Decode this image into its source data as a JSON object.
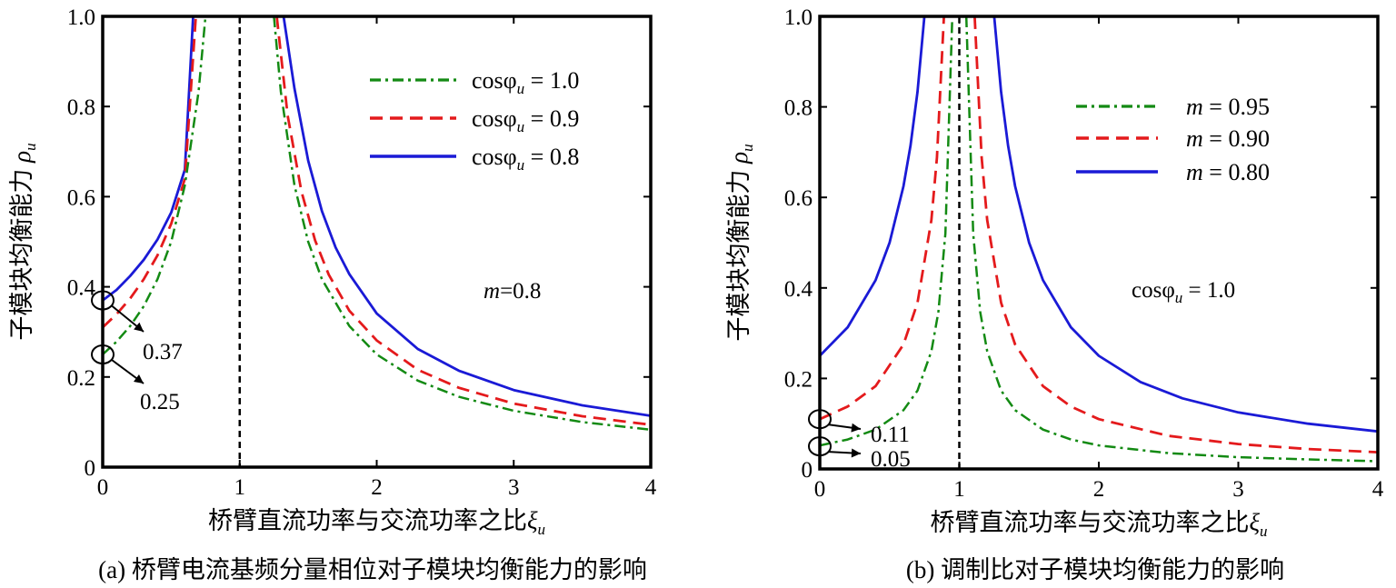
{
  "chart_data": [
    {
      "type": "line",
      "caption": "(a) 桥臂电流基频分量相位对子模块均衡能力的影响",
      "xlabel": "桥臂直流功率与交流功率之比",
      "xlabel_symbol": "ξ",
      "xlabel_sub": "u",
      "ylabel": "子模块均衡能力",
      "ylabel_symbol": "ρ",
      "ylabel_sub": "u",
      "xlim": [
        0,
        4
      ],
      "ylim": [
        0,
        1
      ],
      "x_ticks": [
        "0",
        "1",
        "2",
        "3",
        "4"
      ],
      "y_ticks": [
        "0",
        "0.2",
        "0.4",
        "0.6",
        "0.8",
        "1.0"
      ],
      "vline_x": 1,
      "legend_position": "top-right",
      "note": {
        "prefix": "m",
        "text": "=0.8"
      },
      "callouts": [
        {
          "x": 0,
          "y": 0.37,
          "label": "0.37"
        },
        {
          "x": 0,
          "y": 0.25,
          "label": "0.25"
        }
      ],
      "series": [
        {
          "name": "cos φu = 1.0",
          "legend_lhs": "cosφ",
          "legend_sub": "u",
          "legend_rhs": " = 1.0",
          "param": 1.0,
          "color": "#138a13",
          "dash": "dashdot",
          "width": 2.5,
          "x": [
            0,
            0.1,
            0.2,
            0.3,
            0.4,
            0.5,
            0.6,
            0.7,
            0.75,
            1.25,
            1.3,
            1.4,
            1.5,
            1.6,
            1.8,
            2.0,
            2.3,
            2.6,
            3.0,
            3.5,
            4.0
          ],
          "y": [
            0.25,
            0.278,
            0.313,
            0.357,
            0.417,
            0.5,
            0.625,
            0.833,
            1.0,
            1.0,
            0.833,
            0.625,
            0.5,
            0.417,
            0.313,
            0.25,
            0.192,
            0.156,
            0.125,
            0.1,
            0.083
          ]
        },
        {
          "name": "cos φu = 0.9",
          "legend_lhs": "cosφ",
          "legend_sub": "u",
          "legend_rhs": " = 0.9",
          "param": 0.9,
          "color": "#e41a1c",
          "dash": "dashed",
          "width": 2.8,
          "x": [
            0,
            0.1,
            0.2,
            0.3,
            0.4,
            0.5,
            0.6,
            0.68,
            1.27,
            1.35,
            1.45,
            1.55,
            1.65,
            1.8,
            2.0,
            2.3,
            2.6,
            3.0,
            3.5,
            4.0
          ],
          "y": [
            0.31,
            0.339,
            0.374,
            0.417,
            0.47,
            0.54,
            0.64,
            1.0,
            1.0,
            0.78,
            0.612,
            0.503,
            0.427,
            0.347,
            0.281,
            0.216,
            0.176,
            0.141,
            0.113,
            0.094
          ]
        },
        {
          "name": "cos φu = 0.8",
          "legend_lhs": "cosφ",
          "legend_sub": "u",
          "legend_rhs": " = 0.8",
          "param": 0.8,
          "color": "#1a1ad6",
          "dash": "solid",
          "width": 2.8,
          "x": [
            0,
            0.1,
            0.2,
            0.3,
            0.4,
            0.5,
            0.6,
            0.66,
            1.32,
            1.4,
            1.5,
            1.6,
            1.7,
            1.8,
            2.0,
            2.3,
            2.6,
            3.0,
            3.5,
            4.0
          ],
          "y": [
            0.37,
            0.393,
            0.424,
            0.46,
            0.505,
            0.565,
            0.66,
            1.0,
            1.0,
            0.84,
            0.68,
            0.568,
            0.487,
            0.428,
            0.341,
            0.262,
            0.214,
            0.171,
            0.137,
            0.114
          ]
        }
      ]
    },
    {
      "type": "line",
      "caption": "(b) 调制比对子模块均衡能力的影响",
      "xlabel": "桥臂直流功率与交流功率之比",
      "xlabel_symbol": "ξ",
      "xlabel_sub": "u",
      "ylabel": "子模块均衡能力",
      "ylabel_symbol": "ρ",
      "ylabel_sub": "u",
      "xlim": [
        0,
        4
      ],
      "ylim": [
        0,
        1
      ],
      "x_ticks": [
        "0",
        "1",
        "2",
        "3",
        "4"
      ],
      "y_ticks": [
        "0",
        "0.2",
        "0.4",
        "0.6",
        "0.8",
        "1.0"
      ],
      "vline_x": 1,
      "legend_position": "top-right",
      "note": {
        "prefix": "cosφ",
        "sub": "u",
        "text": " = 1.0"
      },
      "callouts": [
        {
          "x": 0,
          "y": 0.11,
          "label": "0.11"
        },
        {
          "x": 0,
          "y": 0.05,
          "label": "0.05"
        }
      ],
      "series": [
        {
          "name": "m = 0.95",
          "legend_lhs": "m",
          "legend_rhs": " = 0.95",
          "param": 0.95,
          "color": "#138a13",
          "dash": "dashdot",
          "width": 2.5,
          "x": [
            0,
            0.2,
            0.4,
            0.6,
            0.7,
            0.8,
            0.85,
            0.9,
            0.95,
            1.05,
            1.1,
            1.15,
            1.2,
            1.3,
            1.4,
            1.6,
            1.8,
            2.0,
            2.5,
            3.0,
            3.5,
            4.0
          ],
          "y": [
            0.052,
            0.065,
            0.087,
            0.13,
            0.173,
            0.26,
            0.347,
            0.52,
            1.0,
            1.0,
            0.52,
            0.347,
            0.26,
            0.173,
            0.13,
            0.087,
            0.065,
            0.052,
            0.035,
            0.026,
            0.021,
            0.017
          ]
        },
        {
          "name": "m = 0.90",
          "legend_lhs": "m",
          "legend_rhs": " = 0.90",
          "param": 0.9,
          "color": "#e41a1c",
          "dash": "dashed",
          "width": 2.8,
          "x": [
            0,
            0.2,
            0.4,
            0.6,
            0.7,
            0.8,
            0.84,
            0.89,
            1.11,
            1.16,
            1.2,
            1.3,
            1.4,
            1.6,
            1.8,
            2.0,
            2.5,
            3.0,
            3.5,
            4.0
          ],
          "y": [
            0.11,
            0.138,
            0.183,
            0.275,
            0.367,
            0.55,
            0.688,
            1.0,
            1.0,
            0.688,
            0.55,
            0.367,
            0.275,
            0.183,
            0.138,
            0.11,
            0.073,
            0.055,
            0.044,
            0.037
          ]
        },
        {
          "name": "m = 0.80",
          "legend_lhs": "m",
          "legend_rhs": " = 0.80",
          "param": 0.8,
          "color": "#1a1ad6",
          "dash": "solid",
          "width": 2.8,
          "x": [
            0,
            0.2,
            0.4,
            0.5,
            0.6,
            0.65,
            0.7,
            0.75,
            1.25,
            1.3,
            1.35,
            1.4,
            1.5,
            1.6,
            1.8,
            2.0,
            2.3,
            2.6,
            3.0,
            3.5,
            4.0
          ],
          "y": [
            0.25,
            0.313,
            0.417,
            0.5,
            0.625,
            0.714,
            0.833,
            1.0,
            1.0,
            0.833,
            0.714,
            0.625,
            0.5,
            0.417,
            0.313,
            0.25,
            0.192,
            0.156,
            0.125,
            0.1,
            0.083
          ]
        }
      ]
    }
  ]
}
